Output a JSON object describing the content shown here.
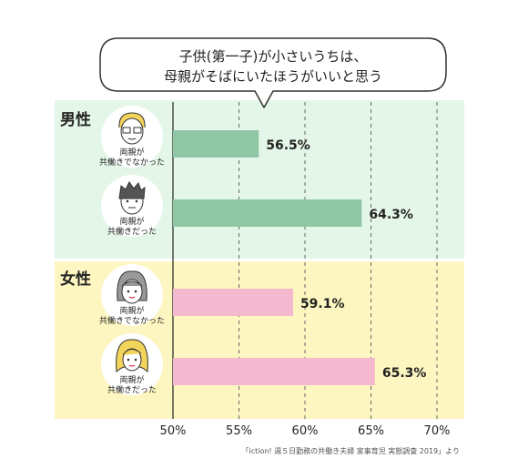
{
  "chart_data": {
    "type": "bar",
    "orientation": "horizontal",
    "title": "子供(第一子)が小さいうちは、\n母親がそばにいたほうがいいと思う",
    "title_lines": [
      "子供(第一子)が小さいうちは、",
      "母親がそばにいたほうがいいと思う"
    ],
    "xlim": [
      50,
      70
    ],
    "ticks": [
      "50%",
      "55%",
      "60%",
      "65%",
      "70%"
    ],
    "tick_values": [
      50,
      55,
      60,
      65,
      70
    ],
    "grid": "vertical dashed",
    "groups": [
      {
        "label": "男性",
        "bg_color": "#e4f6e8",
        "bar_color": "#8fc7a5",
        "bars": [
          {
            "label_lines": [
              "両親が",
              "共働きでなかった"
            ],
            "value": 56.5,
            "value_label": "56.5%",
            "avatar": "man-glasses-icon"
          },
          {
            "label_lines": [
              "両親が",
              "共働きだった"
            ],
            "value": 64.3,
            "value_label": "64.3%",
            "avatar": "man-spiky-hair-icon"
          }
        ]
      },
      {
        "label": "女性",
        "bg_color": "#fdf6c0",
        "bar_color": "#f4b9cf",
        "bars": [
          {
            "label_lines": [
              "両親が",
              "共働きでなかった"
            ],
            "value": 59.1,
            "value_label": "59.1%",
            "avatar": "woman-bob-hair-icon"
          },
          {
            "label_lines": [
              "両親が",
              "共働きだった"
            ],
            "value": 65.3,
            "value_label": "65.3%",
            "avatar": "woman-blonde-hair-icon"
          }
        ]
      }
    ],
    "source": "「iction! 週５日勤務の共働き夫婦 家事育児 実態調査 2019」より"
  }
}
